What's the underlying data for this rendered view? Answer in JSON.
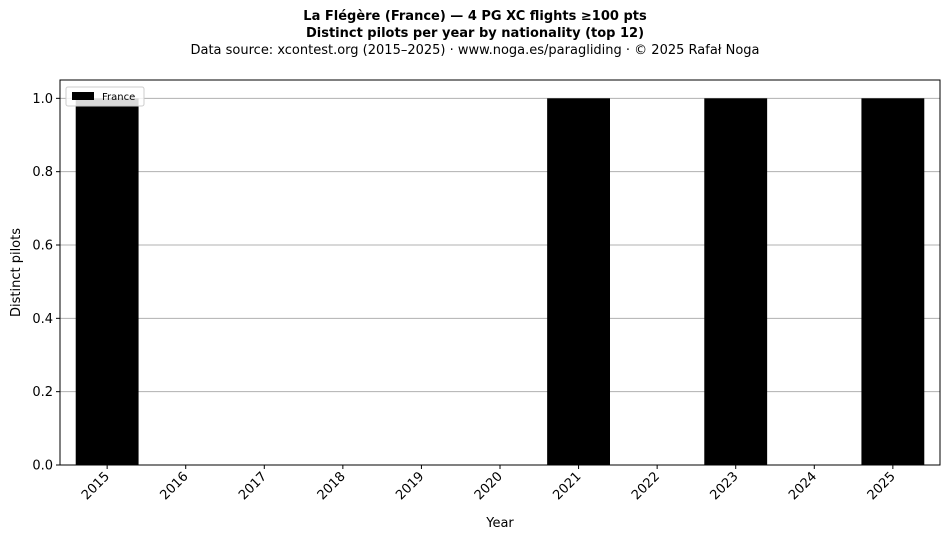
{
  "header": {
    "title": "La Flégère (France)  —  4 PG XC flights ≥100 pts",
    "subtitle": "Distinct pilots per year by nationality (top 12)",
    "source": "Data source: xcontest.org (2015–2025)  ·  www.noga.es/paragliding  ·  © 2025 Rafał Noga"
  },
  "chart_data": {
    "type": "bar",
    "title": "La Flégère (France)  —  4 PG XC flights ≥100 pts",
    "subtitle": "Distinct pilots per year by nationality (top 12)",
    "xlabel": "Year",
    "ylabel": "Distinct pilots",
    "categories": [
      "2015",
      "2016",
      "2017",
      "2018",
      "2019",
      "2020",
      "2021",
      "2022",
      "2023",
      "2024",
      "2025"
    ],
    "series": [
      {
        "name": "France",
        "color": "#000000",
        "values": [
          1,
          0,
          0,
          0,
          0,
          0,
          1,
          0,
          1,
          0,
          1
        ]
      }
    ],
    "ylim": [
      0,
      1.05
    ],
    "yticks": [
      0.0,
      0.2,
      0.4,
      0.6,
      0.8,
      1.0
    ],
    "ytick_labels": [
      "0.0",
      "0.2",
      "0.4",
      "0.6",
      "0.8",
      "1.0"
    ],
    "grid": "y",
    "grid_color": "#b0b0b0",
    "legend_position": "top-left"
  }
}
